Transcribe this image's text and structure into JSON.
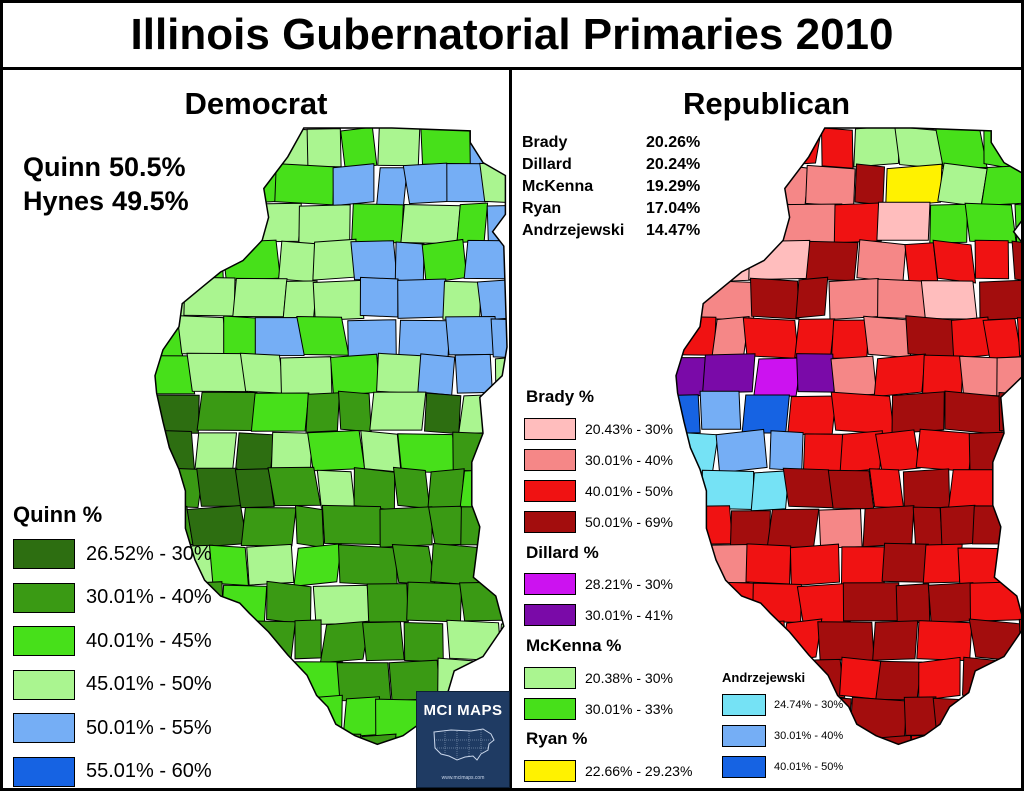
{
  "title": "Illinois Gubernatorial Primaries 2010",
  "democrat": {
    "heading": "Democrat",
    "results": [
      {
        "name": "Quinn",
        "pct": "50.5%"
      },
      {
        "name": "Hynes",
        "pct": "49.5%"
      }
    ],
    "legend_title": "Quinn %",
    "legend": [
      {
        "label": "26.52% - 30%",
        "color": "#2d6e11"
      },
      {
        "label": "30.01% - 40%",
        "color": "#3a9a14"
      },
      {
        "label": "40.01% - 45%",
        "color": "#47e01a"
      },
      {
        "label": "45.01% - 50%",
        "color": "#aaf590"
      },
      {
        "label": "50.01% - 55%",
        "color": "#75aef5"
      },
      {
        "label": "55.01% - 60%",
        "color": "#1663e3"
      }
    ]
  },
  "republican": {
    "heading": "Republican",
    "results": [
      {
        "name": "Brady",
        "pct": "20.26%"
      },
      {
        "name": "Dillard",
        "pct": "20.24%"
      },
      {
        "name": "McKenna",
        "pct": "19.29%"
      },
      {
        "name": "Ryan",
        "pct": "17.04%"
      },
      {
        "name": "Andrzejewski",
        "pct": "14.47%"
      }
    ],
    "legends": {
      "brady": {
        "title": "Brady %",
        "items": [
          {
            "label": "20.43% - 30%",
            "color": "#ffbdbd"
          },
          {
            "label": "30.01% - 40%",
            "color": "#f58787"
          },
          {
            "label": "40.01% - 50%",
            "color": "#f01212"
          },
          {
            "label": "50.01% - 69%",
            "color": "#a30d0d"
          }
        ]
      },
      "dillard": {
        "title": "Dillard %",
        "items": [
          {
            "label": "28.21% - 30%",
            "color": "#cc12f0"
          },
          {
            "label": "30.01% - 41%",
            "color": "#7a0aa8"
          }
        ]
      },
      "mckenna": {
        "title": "McKenna %",
        "items": [
          {
            "label": "20.38% - 30%",
            "color": "#aaf590"
          },
          {
            "label": "30.01% - 33%",
            "color": "#47e01a"
          }
        ]
      },
      "ryan": {
        "title": "Ryan %",
        "items": [
          {
            "label": "22.66% - 29.23%",
            "color": "#fff200"
          }
        ]
      },
      "andrzejewski": {
        "title": "Andrzejewski",
        "items": [
          {
            "label": "24.74% - 30%",
            "color": "#75e2f5"
          },
          {
            "label": "30.01% - 40%",
            "color": "#75aef5"
          },
          {
            "label": "40.01% - 50%",
            "color": "#1663e3"
          }
        ]
      }
    }
  },
  "logo": {
    "brand": "MCI MAPS",
    "url": "www.mcimaps.com"
  }
}
